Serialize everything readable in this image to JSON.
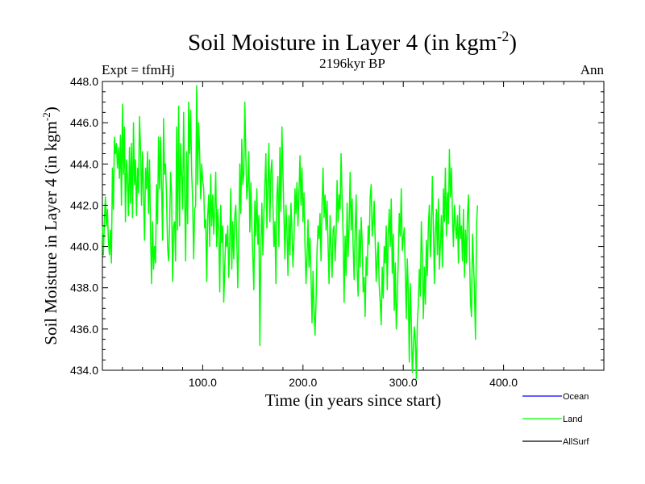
{
  "chart_data": {
    "type": "line",
    "title": "Soil Moisture in Layer 4 (in kgm",
    "title_sup": "-2",
    "title_close": ")",
    "subtitle": "2196kyr BP",
    "left_label": "Expt = tfmHj",
    "right_label": "Ann",
    "xlabel": "Time (in years since start)",
    "ylabel": "Soil Moisture in Layer 4 (in kgm",
    "ylabel_sup": "-2",
    "ylabel_close": ")",
    "xlim": [
      0,
      500
    ],
    "ylim": [
      434,
      448
    ],
    "x_ticks": [
      100,
      200,
      300,
      400
    ],
    "x_tick_labels": [
      "100.0",
      "200.0",
      "300.0",
      "400.0"
    ],
    "y_ticks": [
      434,
      436,
      438,
      440,
      442,
      444,
      446,
      448
    ],
    "y_tick_labels": [
      "434.0",
      "436.0",
      "438.0",
      "440.0",
      "442.0",
      "444.0",
      "446.0",
      "448.0"
    ],
    "legend": [
      {
        "name": "Ocean",
        "color": "#0000ff"
      },
      {
        "name": "Land",
        "color": "#00ff00"
      },
      {
        "name": "AllSurf",
        "color": "#000000"
      }
    ],
    "series": [
      {
        "name": "Land",
        "color": "#00ff00",
        "x_start": 0,
        "x_step": 1,
        "values": [
          441.0,
          439.6,
          441.3,
          442.4,
          441.0,
          441.8,
          440.3,
          439.6,
          440.8,
          439.2,
          443.8,
          441.8,
          445.3,
          444.5,
          445.0,
          443.8,
          444.8,
          443.3,
          445.4,
          442.0,
          446.9,
          443.5,
          445.8,
          441.2,
          444.2,
          443.3,
          441.5,
          444.8,
          442.1,
          445.0,
          441.4,
          446.0,
          443.0,
          444.2,
          441.5,
          443.8,
          442.6,
          446.3,
          444.8,
          442.0,
          444.6,
          442.5,
          440.3,
          443.8,
          442.8,
          444.6,
          441.6,
          444.2,
          440.7,
          438.2,
          441.2,
          438.9,
          440.0,
          439.2,
          443.0,
          441.1,
          445.3,
          442.8,
          445.3,
          443.0,
          440.3,
          446.2,
          443.5,
          444.0,
          442.3,
          440.0,
          439.3,
          441.0,
          443.6,
          442.5,
          438.3,
          441.0,
          441.2,
          439.3,
          445.8,
          440.8,
          446.8,
          441.0,
          445.0,
          443.4,
          441.8,
          446.5,
          442.6,
          439.3,
          444.6,
          441.1,
          447.0,
          444.5,
          446.6,
          443.6,
          442.2,
          439.4,
          441.8,
          442.0,
          447.8,
          443.0,
          446.0,
          444.5,
          442.3,
          444.0,
          443.2,
          442.8,
          440.9,
          441.3,
          438.3,
          441.5,
          442.5,
          440.0,
          443.5,
          441.0,
          442.5,
          440.6,
          441.8,
          443.6,
          440.0,
          441.8,
          440.8,
          437.8,
          442.0,
          440.2,
          441.0,
          437.3,
          439.0,
          440.6,
          440.0,
          441.0,
          438.5,
          440.2,
          442.8,
          438.9,
          441.2,
          439.4,
          441.5,
          442.0,
          440.3,
          438.0,
          440.4,
          444.0,
          441.6,
          445.2,
          443.0,
          443.5,
          447.0,
          444.5,
          442.3,
          443.0,
          444.6,
          440.7,
          443.1,
          441.0,
          439.5,
          437.9,
          442.2,
          440.5,
          442.8,
          440.1,
          441.5,
          435.2,
          440.0,
          442.1,
          439.6,
          441.6,
          443.0,
          444.5,
          440.9,
          442.8,
          445.0,
          441.2,
          443.6,
          444.2,
          442.1,
          440.0,
          441.2,
          438.2,
          442.5,
          443.4,
          440.0,
          444.8,
          441.7,
          445.8,
          443.6,
          441.5,
          439.4,
          442.0,
          440.8,
          438.6,
          441.5,
          439.6,
          442.1,
          440.8,
          439.0,
          440.3,
          442.8,
          441.6,
          443.1,
          441.0,
          442.6,
          444.4,
          442.0,
          443.8,
          441.2,
          442.6,
          440.1,
          438.2,
          439.5,
          441.3,
          439.0,
          440.4,
          438.6,
          436.3,
          438.8,
          437.0,
          435.7,
          437.3,
          439.8,
          441.0,
          440.4,
          441.6,
          439.3,
          442.0,
          443.8,
          441.4,
          442.5,
          440.8,
          442.2,
          440.1,
          438.2,
          441.5,
          440.0,
          438.5,
          440.8,
          441.0,
          439.3,
          440.6,
          443.2,
          441.2,
          442.5,
          441.8,
          444.5,
          442.3,
          440.6,
          437.3,
          440.5,
          438.6,
          442.1,
          439.5,
          441.0,
          443.6,
          440.8,
          442.3,
          440.0,
          438.4,
          440.8,
          442.5,
          438.8,
          437.6,
          440.8,
          439.0,
          441.4,
          440.2,
          437.8,
          438.5,
          436.6,
          439.5,
          438.6,
          441.0,
          440.1,
          442.4,
          443.0,
          440.5,
          441.2,
          442.2,
          440.3,
          438.3,
          439.4,
          440.2,
          438.1,
          437.3,
          436.2,
          439.0,
          437.5,
          440.0,
          439.2,
          441.0,
          437.9,
          440.5,
          441.8,
          440.0,
          442.3,
          438.7,
          440.6,
          436.9,
          439.2,
          436.0,
          437.5,
          439.4,
          441.6,
          440.5,
          442.8,
          439.8,
          440.4,
          440.9,
          438.8,
          436.5,
          439.4,
          437.8,
          434.4,
          438.2,
          436.4,
          433.9,
          435.0,
          436.1,
          435.5,
          433.6,
          436.3,
          437.2,
          438.9,
          437.6,
          441.2,
          439.5,
          436.5,
          439.0,
          437.2,
          440.3,
          438.6,
          441.0,
          442.0,
          439.5,
          440.8,
          443.4,
          441.0,
          438.2,
          440.6,
          441.8,
          439.6,
          442.3,
          438.9,
          440.1,
          441.5,
          439.0,
          442.8,
          441.2,
          443.8,
          440.5,
          442.6,
          441.1,
          444.7,
          442.4,
          443.8,
          441.5,
          440.0,
          442.0,
          441.0,
          440.4,
          441.5,
          439.2,
          442.0,
          440.4,
          441.0,
          439.3,
          441.8,
          438.5,
          440.8,
          439.2,
          441.5,
          442.5,
          439.8,
          437.3,
          436.6,
          440.6,
          439.3,
          437.8,
          435.5,
          441.0,
          442.0
        ]
      }
    ]
  }
}
